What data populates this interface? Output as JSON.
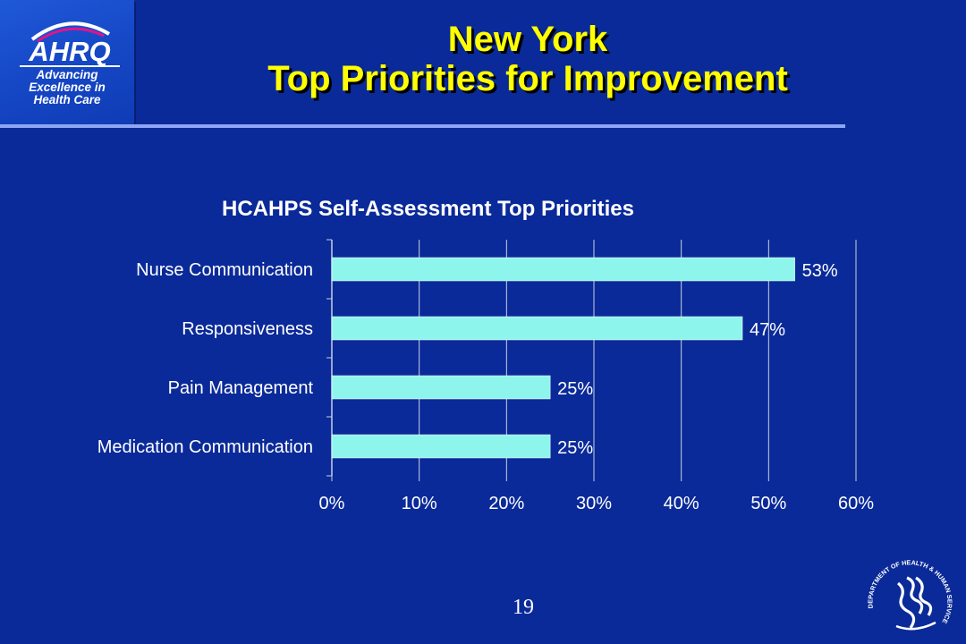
{
  "logo": {
    "wordmark": "AHRQ",
    "tagline_lines": [
      "Advancing",
      "Excellence in",
      "Health Care"
    ],
    "icon": "ahrq-logo-icon"
  },
  "title": {
    "line1": "New York",
    "line2": "Top Priorities for Improvement"
  },
  "page_number": "19",
  "seal": {
    "icon": "hhs-seal-icon",
    "text": "DEPARTMENT OF HEALTH & HUMAN SERVICES · USA"
  },
  "colors": {
    "background": "#0a2a99",
    "title": "#ffff00",
    "bar": "#8ef5ec",
    "text": "#ffffff",
    "grid": "#c8cfe0"
  },
  "chart_data": {
    "type": "bar",
    "orientation": "horizontal",
    "title": "HCAHPS Self-Assessment Top Priorities",
    "categories": [
      "Nurse Communication",
      "Responsiveness",
      "Pain Management",
      "Medication Communication"
    ],
    "values": [
      53,
      47,
      25,
      25
    ],
    "data_labels": [
      "53%",
      "47%",
      "25%",
      "25%"
    ],
    "xlim": [
      0,
      60
    ],
    "xticks": [
      0,
      10,
      20,
      30,
      40,
      50,
      60
    ],
    "xtick_labels": [
      "0%",
      "10%",
      "20%",
      "30%",
      "40%",
      "50%",
      "60%"
    ],
    "xlabel": "",
    "ylabel": "",
    "grid": true,
    "legend": "none"
  }
}
